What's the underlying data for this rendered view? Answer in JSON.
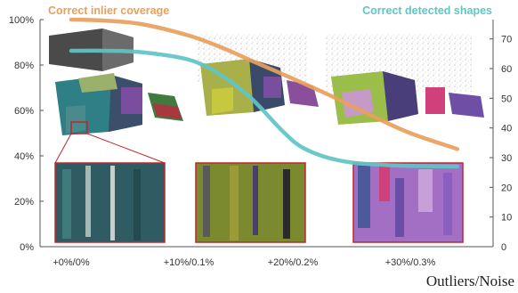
{
  "chart_data": {
    "type": "line",
    "xlabel": "Outliers/Noise",
    "categories": [
      "+0%/0%",
      "+10%/0.1%",
      "+20%/0.2%",
      "+30%/0.3%"
    ],
    "y_left": {
      "ticks": [
        "0%",
        "20%",
        "40%",
        "60%",
        "80%",
        "100%"
      ],
      "ylim": [
        0,
        100
      ]
    },
    "y_right": {
      "ticks": [
        "0",
        "10",
        "20",
        "30",
        "40",
        "50",
        "60",
        "70"
      ],
      "ylim": [
        0,
        76.5
      ]
    },
    "grid": false,
    "legend_placement": "top",
    "series": [
      {
        "name": "Correct inlier coverage",
        "axis": "left",
        "color": "#e8a05c",
        "x": [
          0,
          0.3,
          0.6,
          1.0,
          1.3,
          1.6,
          2.0,
          2.3,
          2.7,
          3.0,
          3.4
        ],
        "values": [
          100,
          99.5,
          98,
          93,
          88,
          82,
          74,
          67,
          57,
          50,
          43
        ]
      },
      {
        "name": "Correct detected shapes",
        "axis": "right",
        "color": "#5ec6c4",
        "x": [
          0,
          0.3,
          0.6,
          1.0,
          1.3,
          1.6,
          1.9,
          2.1,
          2.4,
          2.8,
          3.4
        ],
        "values": [
          66,
          66,
          65.5,
          63,
          58,
          50,
          39,
          33,
          29,
          27.5,
          27
        ]
      }
    ]
  }
}
